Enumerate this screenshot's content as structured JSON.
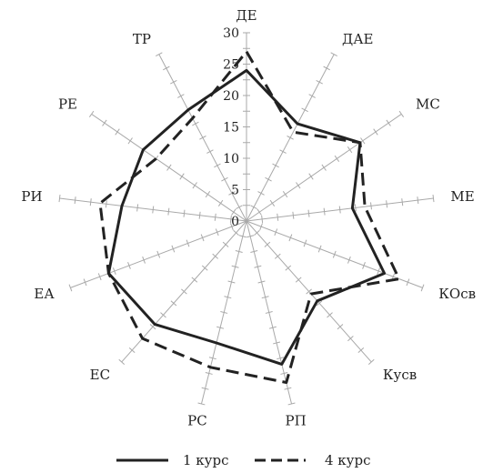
{
  "chart_data": {
    "type": "radar",
    "title": "",
    "categories": [
      "ДЕ",
      "ДАЕ",
      "МС",
      "МЕ",
      "КОсв",
      "Кусв",
      "РП",
      "РС",
      "ЕС",
      "ЕА",
      "РИ",
      "РЕ",
      "ТР"
    ],
    "radial_ticks": [
      0,
      5,
      10,
      15,
      20,
      25,
      30
    ],
    "rlim": [
      0,
      30
    ],
    "grid": true,
    "legend_position": "bottom",
    "series": [
      {
        "name": "1 курс",
        "line_style": "solid",
        "values": [
          24,
          17.5,
          22,
          17,
          23.5,
          17,
          23.5,
          20,
          22,
          23.5,
          20,
          20,
          20
        ]
      },
      {
        "name": "4 курс",
        "line_style": "dashed",
        "values": [
          27,
          16,
          22,
          19,
          26,
          15.5,
          26.5,
          24,
          25,
          23.5,
          23.5,
          17.5,
          18.5
        ]
      }
    ]
  }
}
